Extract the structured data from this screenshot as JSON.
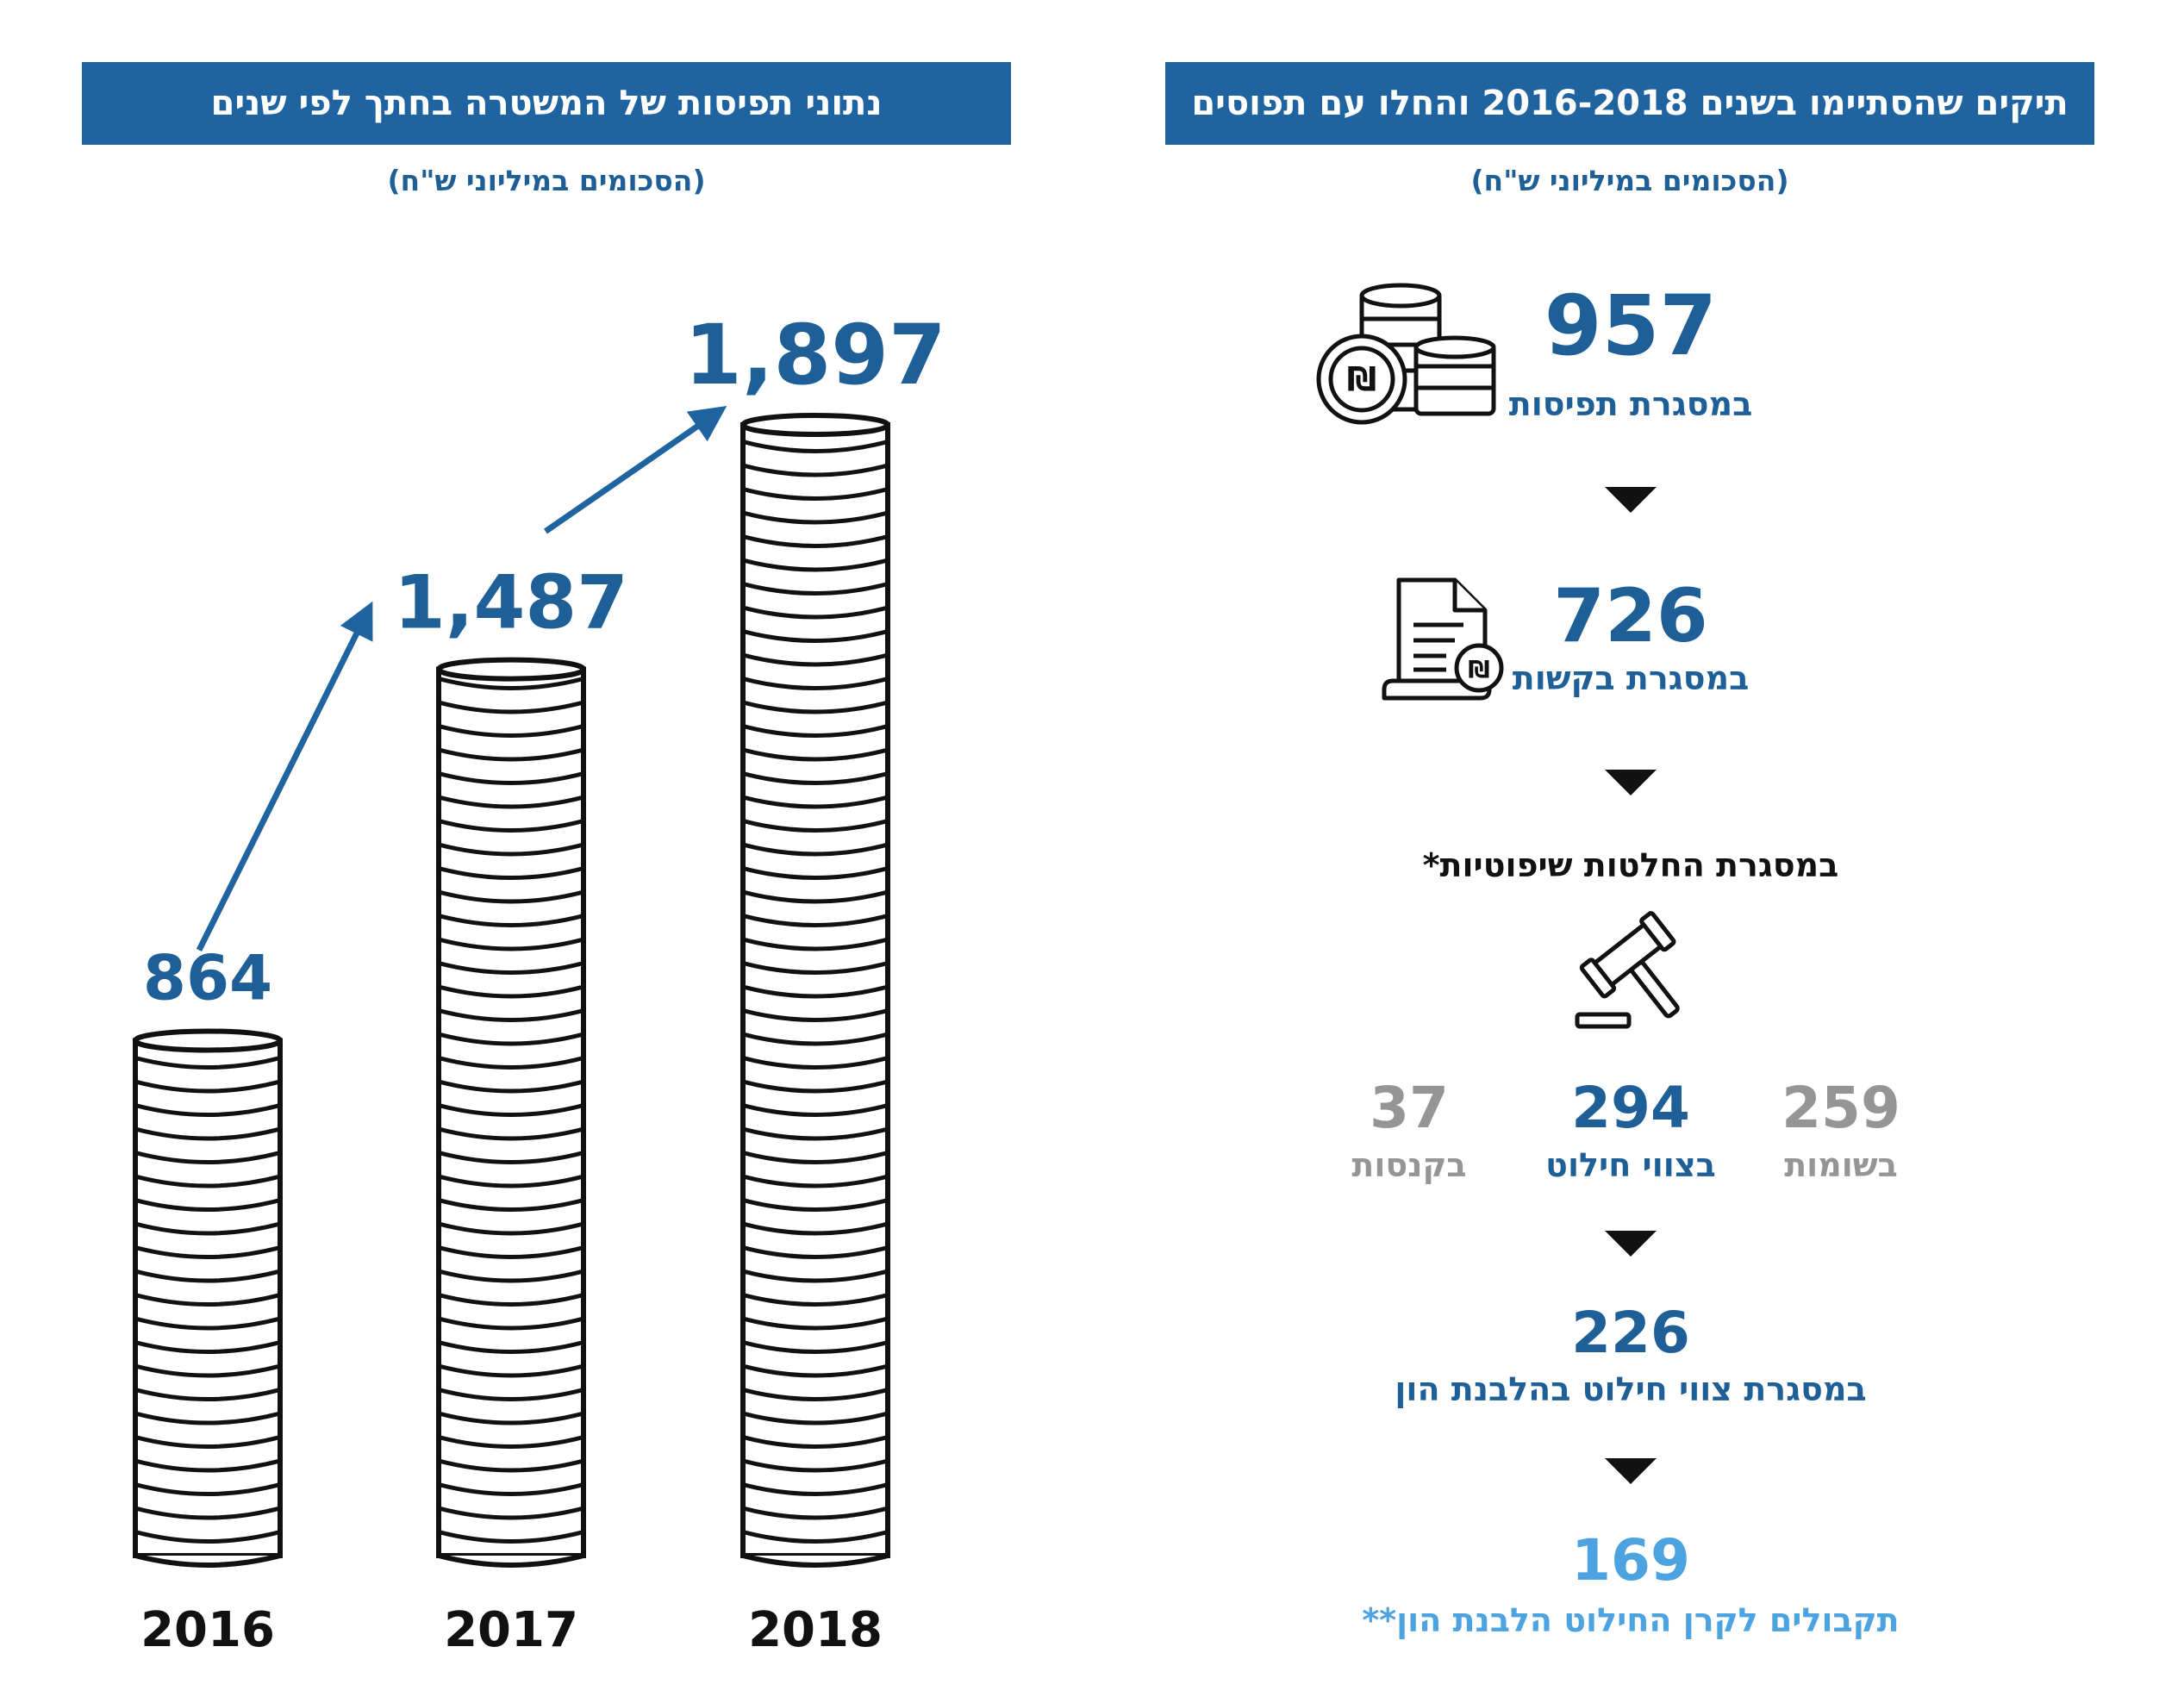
{
  "left_panel": {
    "title": "נתוני תפיסות של המשטרה בחתך לפי שנים",
    "subtitle": "(הסכומים במיליוני ש\"ח)"
  },
  "right_panel": {
    "title": "תיקים שהסתיימו בשנים 2016-2018 והחלו עם תפוסים",
    "subtitle": "(הסכומים במיליוני ש\"ח)",
    "seizures": {
      "value": "957",
      "label": "במסגרת תפיסות",
      "icon": "coins-shekel-icon"
    },
    "requests": {
      "value": "726",
      "label": "במסגרת בקשות",
      "icon": "document-shekel-icon"
    },
    "judicial": {
      "label": "במסגרת החלטות שיפוטיות*",
      "icon": "gavel-icon"
    },
    "breakdown": [
      {
        "value": "259",
        "label": "בשומות",
        "color": "#959595"
      },
      {
        "value": "294",
        "label": "בצווי חילוט",
        "color": "#1f5f98"
      },
      {
        "value": "37",
        "label": "בקנסות",
        "color": "#959595"
      }
    ],
    "money_laundering": {
      "value": "226",
      "label": "במסגרת צווי חילוט בהלבנת הון"
    },
    "fund_receipts": {
      "value": "169",
      "label": "תקבולים לקרן החילוט הלבנת הון**"
    }
  },
  "colors": {
    "banner": "#1f64a0",
    "primary_blue": "#1f5f98",
    "light_blue": "#4ca3e0",
    "grey": "#959595"
  },
  "chart_data": {
    "type": "bar",
    "title": "נתוני תפיסות של המשטרה בחתך לפי שנים",
    "categories": [
      "2016",
      "2017",
      "2018"
    ],
    "values": [
      864,
      1487,
      1897
    ],
    "value_labels": [
      "864",
      "1,487",
      "1,897"
    ],
    "units": "מיליוני ש\"ח",
    "mark": "coin-stack",
    "ylim": [
      0,
      1897
    ]
  }
}
